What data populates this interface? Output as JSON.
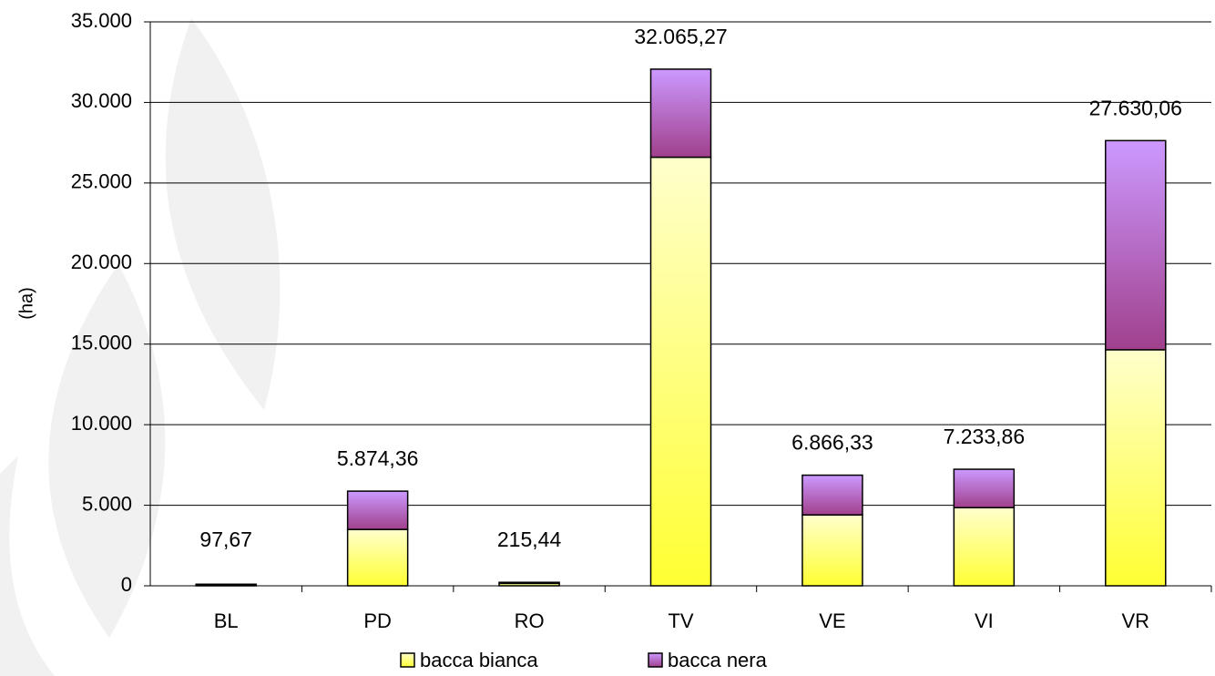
{
  "chart_data": {
    "type": "stacked-bar",
    "y_label": "(ha)",
    "categories": [
      "BL",
      "PD",
      "RO",
      "TV",
      "VE",
      "VI",
      "VR"
    ],
    "series": [
      {
        "name": "bacca bianca",
        "color": "#ffff33",
        "values": [
          55,
          3500,
          150,
          26600,
          4400,
          4850,
          14650
        ]
      },
      {
        "name": "bacca nera",
        "color": "#a0408c",
        "values": [
          42.67,
          2374.36,
          65.44,
          5465.27,
          2466.33,
          2383.86,
          12980.06
        ]
      }
    ],
    "totals": {
      "values": [
        97.67,
        5874.36,
        215.44,
        32065.27,
        6866.33,
        7233.86,
        27630.06
      ],
      "value_labels": [
        "97,67",
        "5.874,36",
        "215,44",
        "32.065,27",
        "6.866,33",
        "7.233,86",
        "27.630,06"
      ]
    },
    "ylim": [
      0,
      35000
    ],
    "yticks": [
      0,
      {
        "value": 5000,
        "label": "5.000"
      },
      {
        "value": 10000,
        "label": "10.000"
      },
      {
        "value": 15000,
        "label": "15.000"
      },
      {
        "value": 20000,
        "label": "20.000"
      },
      {
        "value": 25000,
        "label": "25.000"
      },
      {
        "value": 30000,
        "label": "30.000"
      },
      {
        "value": 35000,
        "label": "35.000"
      }
    ],
    "grid": true,
    "legend": "bottom"
  }
}
